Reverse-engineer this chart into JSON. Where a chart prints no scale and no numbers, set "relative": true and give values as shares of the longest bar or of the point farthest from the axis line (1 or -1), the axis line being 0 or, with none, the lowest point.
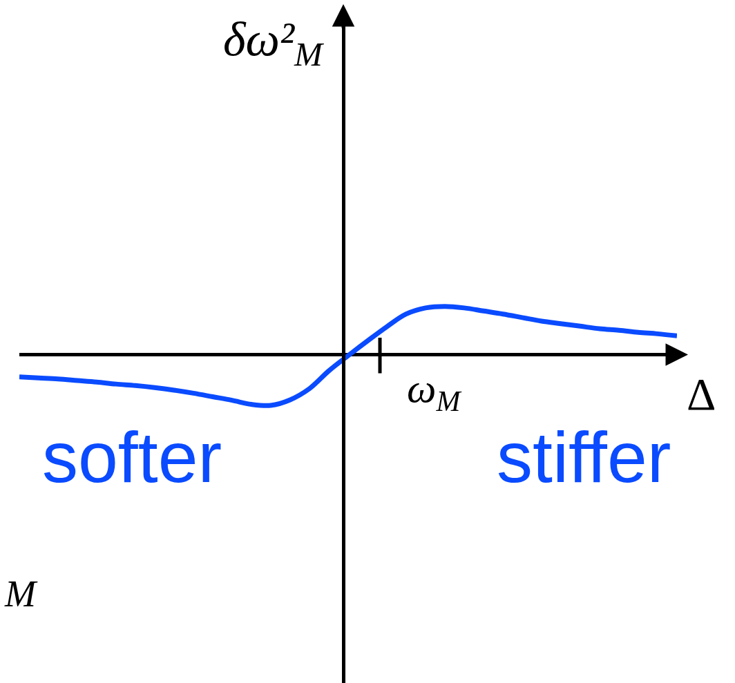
{
  "chart_data": {
    "type": "line",
    "relative": true,
    "categories": [
      null,
      null,
      null,
      null,
      null,
      null,
      null,
      null,
      null,
      null,
      null,
      null,
      null,
      null,
      null,
      null,
      null,
      null,
      null,
      null,
      null,
      null,
      null,
      null,
      null,
      null,
      null,
      null,
      null,
      null,
      null,
      null,
      null,
      null,
      null
    ],
    "series": [
      {
        "color": "#0a4bff",
        "values": [
          -0.44,
          -0.46,
          -0.48,
          -0.51,
          -0.54,
          -0.58,
          -0.61,
          -0.65,
          -0.7,
          -0.76,
          -0.83,
          -0.9,
          -0.98,
          -1,
          -0.89,
          -0.67,
          -0.32,
          -0.02,
          0.27,
          0.55,
          0.8,
          0.92,
          0.95,
          0.92,
          0.86,
          0.8,
          0.73,
          0.66,
          0.61,
          0.56,
          0.51,
          0.48,
          0.44,
          0.41,
          0.37
        ]
      }
    ],
    "xlabel": "Δ",
    "ylabel": "δω²$_{M}$",
    "annotations": [
      "ω$_{M}$",
      "softer",
      "stiffer",
      "M"
    ]
  }
}
